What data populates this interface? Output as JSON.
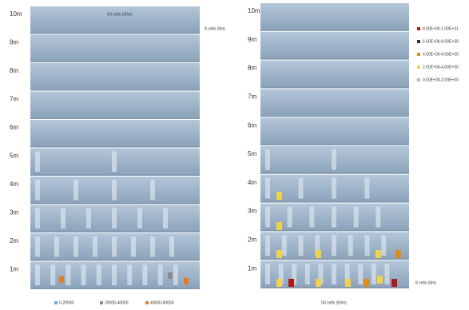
{
  "left_panel": {
    "top_label": "50 cells (50m)",
    "side_label": "8 cells (8m)",
    "layer_labels": [
      "10m",
      "9m",
      "8m",
      "7m",
      "6m",
      "5m",
      "4m",
      "3m",
      "2m",
      "1m"
    ],
    "legend": [
      {
        "label": "0-20000",
        "color": "#7fa7d6"
      },
      {
        "label": "20000-40000",
        "color": "#8a8a8a"
      },
      {
        "label": "40000-60000",
        "color": "#e07b2a"
      }
    ]
  },
  "right_panel": {
    "bottom_label": "50 cells (50m)",
    "side_label": "8 cells (8m)",
    "layer_labels": [
      "10m",
      "9m",
      "8m",
      "7m",
      "6m",
      "5m",
      "4m",
      "3m",
      "2m",
      "1m"
    ],
    "legend": [
      {
        "label": "8.00E+00-1.00E+01",
        "color": "#b01818"
      },
      {
        "label": "6.00E+00-8.00E+00",
        "color": "#333333"
      },
      {
        "label": "4.00E+00-6.00E+00",
        "color": "#e08a1e"
      },
      {
        "label": "2.00E+00-4.00E+00",
        "color": "#f2d24a"
      },
      {
        "label": "0.00E+00-2.00E+00",
        "color": "#9cc0e6"
      }
    ]
  }
}
